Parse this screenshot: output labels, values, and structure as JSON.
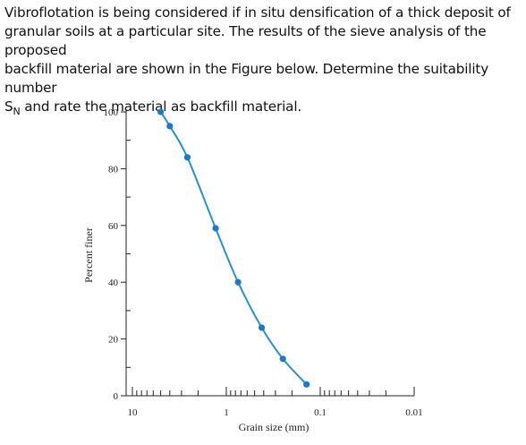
{
  "question": {
    "line1": "Vibroflotation is being considered if in situ densification of a thick deposit of",
    "line2": "granular soils at a particular site. The results of the sieve analysis of the proposed",
    "line3": "backfill material are shown in the Figure below. Determine the suitability number",
    "line4_pre": "S",
    "line4_sub": "N",
    "line4_post": " and rate the material as backfill material."
  },
  "chart_data": {
    "type": "line",
    "title": "",
    "xlabel": "Grain size (mm)",
    "ylabel": "Percent finer",
    "x_scale": "log",
    "x_reversed": true,
    "xlim": [
      10,
      0.01
    ],
    "ylim": [
      0,
      100
    ],
    "x_ticks": [
      10,
      1,
      0.1,
      0.01
    ],
    "x_tick_labels": [
      "10",
      "1",
      "0.1",
      "0.01"
    ],
    "y_ticks": [
      0,
      20,
      40,
      60,
      80,
      100
    ],
    "y_tick_labels": [
      "0",
      "20",
      "40",
      "60",
      "80",
      "100"
    ],
    "grid": false,
    "line_color": "#2b8fd0",
    "marker_color": "#1f78c4",
    "series": [
      {
        "x": [
          5.0,
          4.0,
          2.6,
          1.3,
          0.75,
          0.42,
          0.25,
          0.14
        ],
        "y": [
          100,
          95,
          84,
          59,
          40,
          24,
          13,
          4
        ]
      }
    ]
  }
}
